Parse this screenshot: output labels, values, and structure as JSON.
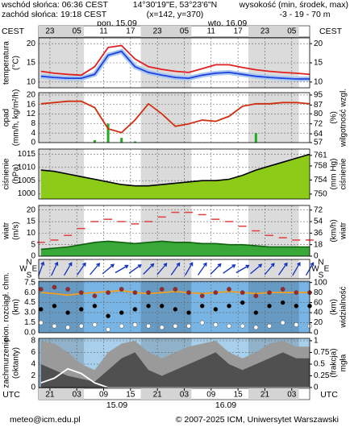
{
  "header": {
    "sunrise": "wschód słońca: 06:36 CEST",
    "sunset": "zachód słońca: 19:18 CEST",
    "coords": "14°30'19\"E, 53°23'6\"N",
    "grid": "(x=142, y=370)",
    "height_title": "wysokość (min, środek, max)",
    "height_values": "-3 - 19 - 70 m"
  },
  "time": {
    "top_label": "CEST",
    "bottom_label": "UTC",
    "dates_top": [
      "pon, 15.09",
      "wto, 16.09"
    ],
    "dates_bottom": [
      "15.09",
      "16.09"
    ],
    "xlim": [
      -3.5,
      57
    ],
    "top_ticks": [
      {
        "value": -1,
        "label": "23"
      },
      {
        "value": 5,
        "label": "05"
      },
      {
        "value": 11,
        "label": "11"
      },
      {
        "value": 17,
        "label": "17"
      },
      {
        "value": 23,
        "label": "23"
      },
      {
        "value": 29,
        "label": "05"
      },
      {
        "value": 35,
        "label": "11"
      },
      {
        "value": 41,
        "label": "17"
      },
      {
        "value": 47,
        "label": "23"
      },
      {
        "value": 53,
        "label": "05"
      }
    ],
    "bottom_ticks": [
      {
        "value": -1,
        "label": "21"
      },
      {
        "value": 5,
        "label": "03"
      },
      {
        "value": 11,
        "label": "09"
      },
      {
        "value": 17,
        "label": "15"
      },
      {
        "value": 23,
        "label": "21"
      },
      {
        "value": 29,
        "label": "03"
      },
      {
        "value": 35,
        "label": "09"
      },
      {
        "value": 41,
        "label": "15"
      },
      {
        "value": 47,
        "label": "21"
      },
      {
        "value": 53,
        "label": "03"
      }
    ],
    "x": [
      -3,
      0,
      3,
      6,
      9,
      12,
      15,
      18,
      21,
      24,
      27,
      30,
      33,
      36,
      39,
      42,
      45,
      48,
      51,
      54,
      57
    ]
  },
  "chart_data": [
    {
      "type": "line",
      "left_label": [
        "temperatura",
        "(°C)"
      ],
      "ylim": [
        8.5,
        21.5
      ],
      "yticks": [
        10,
        15,
        20
      ],
      "y2lim": [
        8.5,
        21.5
      ],
      "y2ticks": [
        10,
        15,
        20
      ],
      "series": [
        {
          "kind": "line",
          "color": "#2040e0",
          "halo": "#a8c8f0",
          "values": [
            11.5,
            11.2,
            11,
            11,
            12,
            17,
            18,
            14,
            12.5,
            11.8,
            11.2,
            11,
            11.8,
            12.3,
            12.5,
            12,
            11.5,
            11.2,
            11,
            10.8,
            10.8
          ]
        },
        {
          "kind": "line",
          "color": "#e02020",
          "values": [
            12.8,
            12.3,
            12,
            11.8,
            14,
            19,
            19.5,
            16,
            14,
            13.3,
            12.8,
            12.5,
            13.5,
            14.5,
            14.5,
            13.8,
            13.2,
            12.8,
            12.5,
            12.3,
            12
          ]
        }
      ]
    },
    {
      "type": "line",
      "left_label": [
        "opad",
        "(mm/h, kg/m²/h)"
      ],
      "right_label": [
        "(%)",
        "wilgotność wzgl."
      ],
      "ylim": [
        0,
        21
      ],
      "yticks": [
        0,
        4,
        8,
        12,
        16,
        20
      ],
      "y2lim": [
        57,
        96.9
      ],
      "y2ticks": [
        57,
        64,
        72,
        80,
        87,
        95
      ],
      "series": [
        {
          "kind": "bars",
          "color": "#22aa22",
          "values": [
            0,
            0,
            0,
            0,
            1,
            8,
            2,
            0.5,
            0,
            0,
            0,
            0,
            0,
            0,
            0,
            0,
            4,
            0,
            0,
            0,
            0
          ]
        },
        {
          "kind": "line",
          "axis": "y2",
          "color": "#d03010",
          "values": [
            88,
            89,
            90,
            90,
            85,
            68,
            65,
            75,
            88,
            80,
            70,
            72,
            75,
            74,
            78,
            86,
            88,
            88,
            89,
            89,
            88
          ]
        }
      ]
    },
    {
      "type": "line",
      "left_label": [
        "ciśnienie",
        "(hPa)"
      ],
      "right_label": [
        "(mm Hg)",
        "ciśnienie"
      ],
      "ylim": [
        998,
        1017
      ],
      "yticks": [
        1000,
        1005,
        1010,
        1015
      ],
      "y2lim": [
        748.6,
        762.8
      ],
      "y2ticks": [
        750,
        754,
        758,
        761
      ],
      "series": [
        {
          "kind": "area",
          "color": "#8ccc18",
          "line_color": "#000000",
          "values": [
            1009,
            1008.5,
            1007.5,
            1006.5,
            1005.5,
            1004.5,
            1003.5,
            1003,
            1003,
            1003.5,
            1004,
            1004.5,
            1005,
            1005,
            1005.5,
            1007,
            1009,
            1010.5,
            1012,
            1013.5,
            1015
          ]
        }
      ]
    },
    {
      "type": "line",
      "left_label": [
        "wiatr",
        "(m/s)"
      ],
      "right_label": [
        "(km/h)",
        "wiatr"
      ],
      "ylim": [
        0,
        22
      ],
      "yticks": [
        0,
        5,
        10,
        15,
        20
      ],
      "y2lim": [
        0,
        79.2
      ],
      "y2ticks": [
        0,
        18,
        36,
        54,
        72
      ],
      "series": [
        {
          "kind": "area",
          "color": "#38a838",
          "line_color": "#106010",
          "values": [
            3,
            3.5,
            4,
            5,
            6,
            6.5,
            6,
            5.5,
            6,
            6.5,
            6,
            6,
            5.5,
            5.5,
            5,
            5,
            4.5,
            4,
            4,
            4,
            4
          ]
        },
        {
          "kind": "dashes",
          "color": "#e04040",
          "values": [
            6,
            7,
            9,
            12,
            15,
            16,
            15,
            14,
            15,
            17,
            19,
            19,
            18,
            16,
            15,
            13,
            11,
            9,
            8,
            7,
            7
          ]
        }
      ]
    },
    {
      "type": "arrows",
      "compass": [
        "N",
        "W",
        "E",
        "S"
      ],
      "color": "#1030c0",
      "values": [
        200,
        205,
        210,
        215,
        220,
        230,
        240,
        235,
        225,
        220,
        215,
        210,
        215,
        225,
        235,
        240,
        230,
        220,
        215,
        210,
        210
      ]
    },
    {
      "type": "line",
      "left_label": [
        "pion. rozciągł. chm.",
        "(km)"
      ],
      "right_label": [
        "(km)",
        "widzialność"
      ],
      "background": "#78b4e4",
      "ylim": [
        0,
        7.7
      ],
      "yticks": [
        {
          "value": 0,
          "label": "0.0"
        },
        1.5,
        {
          "value": 3,
          "label": "3.0"
        },
        4.5,
        {
          "value": 6,
          "label": "6.0"
        },
        7.5
      ],
      "y2lim": [
        0,
        102.7
      ],
      "y2ticks": [
        0,
        20,
        40,
        60,
        80,
        100
      ],
      "series": [
        {
          "kind": "line",
          "axis": "y2",
          "color": "#f0a020",
          "values": [
            80,
            78,
            75,
            78,
            80,
            82,
            84,
            80,
            78,
            80,
            82,
            80,
            78,
            80,
            82,
            80,
            78,
            80,
            80,
            80,
            80
          ]
        },
        {
          "kind": "dots",
          "color": "#a02828",
          "values": [
            6.5,
            6.8,
            6.5,
            6,
            5.5,
            6,
            6.5,
            6,
            6,
            6.5,
            6.5,
            6,
            5.5,
            6,
            6.5,
            6,
            5.5,
            6,
            6.5,
            6,
            6
          ]
        },
        {
          "kind": "dots",
          "color": "#000000",
          "values": [
            3.5,
            4,
            3,
            3.5,
            4,
            2.5,
            3,
            3.5,
            4,
            4,
            3.5,
            3,
            4,
            3.5,
            4,
            4.5,
            3,
            4,
            4.5,
            4,
            4
          ]
        },
        {
          "kind": "dots",
          "color": "#ffffff",
          "values": [
            1.5,
            1,
            0.8,
            1,
            1.2,
            0.5,
            1,
            1.2,
            1,
            0.8,
            1,
            1,
            1.5,
            1.2,
            1,
            1,
            0.8,
            1,
            1.5,
            1.2,
            1
          ]
        }
      ]
    },
    {
      "type": "line",
      "left_label": [
        "zachmurzenie",
        "(oktanty)"
      ],
      "right_label": [
        "(frakcja)",
        "mgła"
      ],
      "background": "#a8d0ec",
      "ylim": [
        0,
        8.4
      ],
      "yticks": [
        0,
        2,
        4,
        6,
        8
      ],
      "y2lim": [
        0,
        1.05
      ],
      "y2ticks": [
        0,
        0.25,
        0.5,
        0.75,
        1
      ],
      "series": [
        {
          "kind": "area",
          "color": "#9a9a9a",
          "values": [
            8,
            7.5,
            6,
            4,
            3,
            6,
            7.5,
            8,
            6,
            5,
            6,
            7,
            7.5,
            8,
            6,
            5,
            6,
            7.5,
            8,
            7,
            7
          ]
        },
        {
          "kind": "area",
          "color": "#505050",
          "values": [
            4,
            3,
            2,
            1.5,
            1,
            3,
            5,
            6,
            3,
            2,
            3,
            4,
            5,
            6,
            4,
            3,
            4,
            5,
            6,
            5,
            5
          ]
        },
        {
          "kind": "line",
          "axis": "y2",
          "color": "#ffffff",
          "values": [
            0.1,
            0.2,
            0.4,
            0.3,
            0.1,
            0,
            0,
            0,
            0,
            0,
            0,
            0,
            0,
            0,
            0,
            0,
            0,
            0,
            0,
            0,
            0
          ]
        }
      ]
    }
  ],
  "footer": {
    "email": "meteo@icm.edu.pl",
    "copyright": "© 2007-2025 ICM, Uniwersytet Warszawski"
  }
}
